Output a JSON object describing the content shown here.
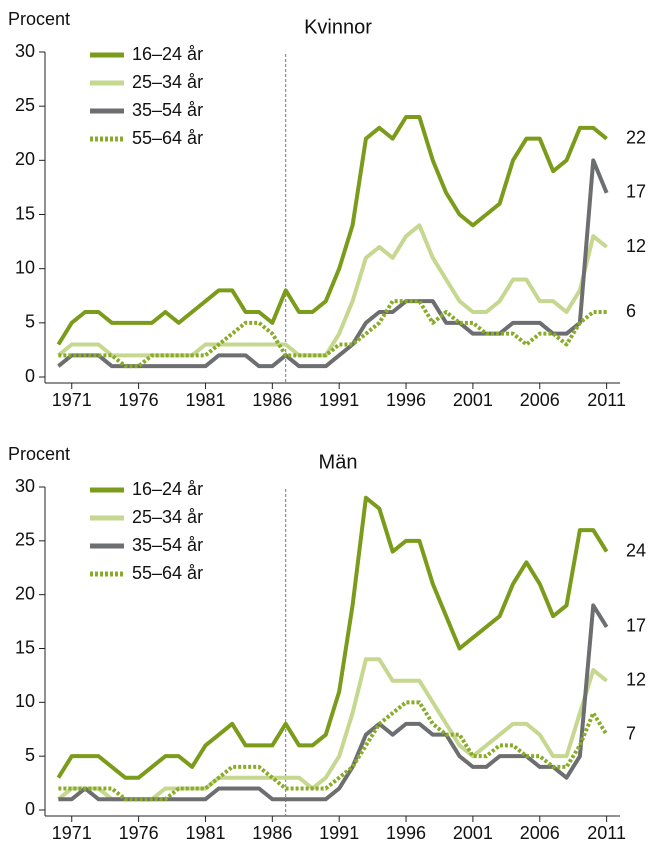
{
  "chart_data": [
    {
      "type": "line",
      "title": "Kvinnor",
      "y_label": "Procent",
      "x": [
        1970,
        1971,
        1972,
        1973,
        1974,
        1975,
        1976,
        1977,
        1978,
        1979,
        1980,
        1981,
        1982,
        1983,
        1984,
        1985,
        1986,
        1987,
        1988,
        1989,
        1990,
        1991,
        1992,
        1993,
        1994,
        1995,
        1996,
        1997,
        1998,
        1999,
        2000,
        2001,
        2002,
        2003,
        2004,
        2005,
        2006,
        2007,
        2008,
        2009,
        2010,
        2011
      ],
      "xlim": [
        1969,
        2012
      ],
      "xticks": [
        1971,
        1976,
        1981,
        1986,
        1991,
        1996,
        2001,
        2006,
        2011
      ],
      "ylim": [
        0,
        30
      ],
      "yticks": [
        0,
        5,
        10,
        15,
        20,
        25,
        30
      ],
      "vline": 1987,
      "legend": "upper left",
      "series": [
        {
          "name": "16–24 år",
          "color": "#7b9b1b",
          "style": "solid",
          "end_label": 22,
          "values": [
            3,
            5,
            6,
            6,
            5,
            5,
            5,
            5,
            6,
            5,
            6,
            7,
            8,
            8,
            6,
            6,
            5,
            8,
            6,
            6,
            7,
            10,
            14,
            22,
            23,
            22,
            24,
            24,
            20,
            17,
            15,
            14,
            15,
            16,
            20,
            22,
            22,
            19,
            20,
            23,
            23,
            22
          ]
        },
        {
          "name": "25–34 år",
          "color": "#c6d78f",
          "style": "solid",
          "end_label": 12,
          "values": [
            2,
            3,
            3,
            3,
            2,
            2,
            2,
            2,
            2,
            2,
            2,
            3,
            3,
            3,
            3,
            3,
            3,
            3,
            2,
            2,
            2,
            4,
            7,
            11,
            12,
            11,
            13,
            14,
            11,
            9,
            7,
            6,
            6,
            7,
            9,
            9,
            7,
            7,
            6,
            8,
            13,
            12
          ]
        },
        {
          "name": "35–54 år",
          "color": "#6d6e70",
          "style": "solid",
          "end_label": 17,
          "values": [
            1,
            2,
            2,
            2,
            1,
            1,
            1,
            1,
            1,
            1,
            1,
            1,
            2,
            2,
            2,
            1,
            1,
            2,
            1,
            1,
            1,
            2,
            3,
            5,
            6,
            6,
            7,
            7,
            7,
            5,
            5,
            4,
            4,
            4,
            5,
            5,
            5,
            4,
            4,
            5,
            20,
            17
          ]
        },
        {
          "name": "55–64 år",
          "color": "#8aab2a",
          "style": "dotted",
          "end_label": 6,
          "values": [
            2,
            2,
            2,
            2,
            2,
            1,
            1,
            2,
            2,
            2,
            2,
            2,
            3,
            4,
            5,
            5,
            4,
            2,
            2,
            2,
            2,
            3,
            3,
            4,
            5,
            7,
            7,
            7,
            5,
            6,
            5,
            5,
            4,
            4,
            4,
            3,
            4,
            4,
            3,
            5,
            6,
            6
          ]
        }
      ]
    },
    {
      "type": "line",
      "title": "Män",
      "y_label": "Procent",
      "x": [
        1970,
        1971,
        1972,
        1973,
        1974,
        1975,
        1976,
        1977,
        1978,
        1979,
        1980,
        1981,
        1982,
        1983,
        1984,
        1985,
        1986,
        1987,
        1988,
        1989,
        1990,
        1991,
        1992,
        1993,
        1994,
        1995,
        1996,
        1997,
        1998,
        1999,
        2000,
        2001,
        2002,
        2003,
        2004,
        2005,
        2006,
        2007,
        2008,
        2009,
        2010,
        2011
      ],
      "xlim": [
        1969,
        2012
      ],
      "xticks": [
        1971,
        1976,
        1981,
        1986,
        1991,
        1996,
        2001,
        2006,
        2011
      ],
      "ylim": [
        0,
        30
      ],
      "yticks": [
        0,
        5,
        10,
        15,
        20,
        25,
        30
      ],
      "vline": 1987,
      "legend": "upper left",
      "series": [
        {
          "name": "16–24 år",
          "color": "#7b9b1b",
          "style": "solid",
          "end_label": 24,
          "values": [
            3,
            5,
            5,
            5,
            4,
            3,
            3,
            4,
            5,
            5,
            4,
            6,
            7,
            8,
            6,
            6,
            6,
            8,
            6,
            6,
            7,
            11,
            19,
            29,
            28,
            24,
            25,
            25,
            21,
            18,
            15,
            16,
            17,
            18,
            21,
            23,
            21,
            18,
            19,
            26,
            26,
            24
          ]
        },
        {
          "name": "25–34 år",
          "color": "#c6d78f",
          "style": "solid",
          "end_label": 12,
          "values": [
            1,
            2,
            2,
            2,
            1,
            1,
            1,
            1,
            2,
            2,
            2,
            2,
            3,
            3,
            3,
            3,
            3,
            3,
            3,
            2,
            3,
            5,
            9,
            14,
            14,
            12,
            12,
            12,
            10,
            8,
            6,
            5,
            6,
            7,
            8,
            8,
            7,
            5,
            5,
            9,
            13,
            12
          ]
        },
        {
          "name": "35–54 år",
          "color": "#6d6e70",
          "style": "solid",
          "end_label": 17,
          "values": [
            1,
            1,
            2,
            1,
            1,
            1,
            1,
            1,
            1,
            1,
            1,
            1,
            2,
            2,
            2,
            2,
            1,
            1,
            1,
            1,
            1,
            2,
            4,
            7,
            8,
            7,
            8,
            8,
            7,
            7,
            5,
            4,
            4,
            5,
            5,
            5,
            4,
            4,
            3,
            5,
            19,
            17
          ]
        },
        {
          "name": "55–64 år",
          "color": "#8aab2a",
          "style": "dotted",
          "end_label": 7,
          "values": [
            2,
            2,
            2,
            2,
            2,
            1,
            1,
            1,
            1,
            2,
            2,
            2,
            3,
            4,
            4,
            4,
            3,
            2,
            2,
            2,
            2,
            3,
            4,
            6,
            8,
            9,
            10,
            10,
            8,
            7,
            7,
            5,
            5,
            6,
            6,
            5,
            5,
            4,
            4,
            6,
            9,
            7
          ]
        }
      ]
    }
  ]
}
